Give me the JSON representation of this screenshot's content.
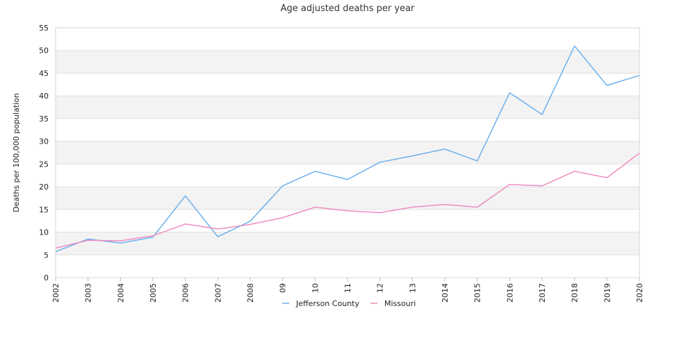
{
  "chart_data": {
    "type": "line",
    "title": "Age adjusted deaths per year",
    "xlabel": "",
    "ylabel": "Deaths per 100,000 population",
    "ylim": [
      0,
      55
    ],
    "yticks": [
      "0",
      "5",
      "10",
      "15",
      "20",
      "25",
      "30",
      "35",
      "40",
      "45",
      "50",
      "55"
    ],
    "categories": [
      "2002",
      "2003",
      "2004",
      "2005",
      "2006",
      "2007",
      "2008",
      "09",
      "10",
      "11",
      "12",
      "13",
      "2014",
      "2015",
      "2016",
      "2017",
      "2018",
      "2019",
      "2020"
    ],
    "grid": "horizontal alternating bands",
    "legend_position": "bottom",
    "series": [
      {
        "name": "Jefferson County",
        "color": "#6cb0ec",
        "values": [
          5.7,
          8.5,
          7.6,
          8.9,
          18.0,
          9.0,
          12.4,
          20.2,
          23.4,
          21.6,
          25.4,
          26.8,
          28.3,
          25.7,
          40.7,
          35.9,
          51.0,
          42.3,
          44.5
        ]
      },
      {
        "name": "Missouri",
        "color": "#ee8cbf",
        "values": [
          6.5,
          8.2,
          8.1,
          9.2,
          11.8,
          10.7,
          11.7,
          13.2,
          15.5,
          14.7,
          14.3,
          15.5,
          16.1,
          15.5,
          20.5,
          20.2,
          23.4,
          22.0,
          27.4
        ]
      }
    ]
  }
}
